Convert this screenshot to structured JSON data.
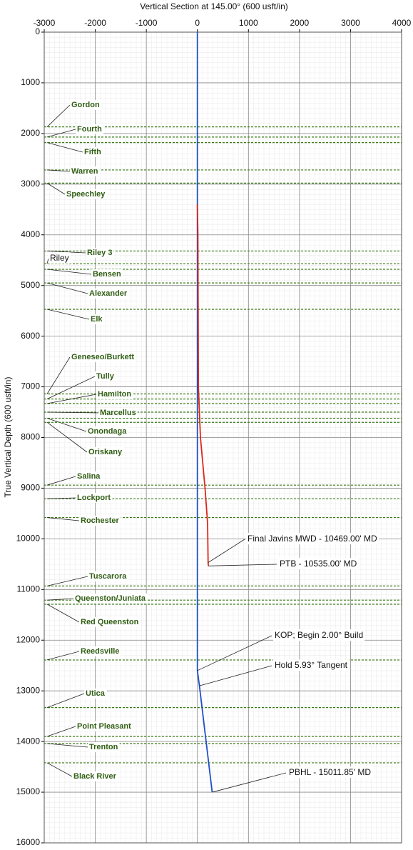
{
  "chart_data": {
    "type": "line",
    "x_label": "Vertical Section at 145.00° (600 usft/in)",
    "y_label": "True Vertical Depth (600 usft/in)",
    "xlim": [
      -3000,
      4000
    ],
    "xticks": [
      -3000,
      -2000,
      -1000,
      0,
      1000,
      2000,
      3000,
      4000
    ],
    "ylim": [
      0,
      16000
    ],
    "yticks": [
      0,
      1000,
      2000,
      3000,
      4000,
      5000,
      6000,
      7000,
      8000,
      9000,
      10000,
      11000,
      12000,
      13000,
      14000,
      15000,
      16000
    ],
    "y_inverted": true,
    "grid": true,
    "series": [
      {
        "color": "#1f4fc8",
        "x": [
          0,
          0,
          40,
          290
        ],
        "tvd": [
          0,
          12600,
          12900,
          15000
        ]
      },
      {
        "color": "#e0261a",
        "x": [
          0,
          10,
          20,
          60,
          150,
          200,
          210,
          215
        ],
        "tvd": [
          3400,
          4000,
          7000,
          8000,
          9000,
          9700,
          10469,
          10535
        ]
      }
    ],
    "formation_color": "#3a7a14",
    "formations": [
      {
        "name": "Gordon",
        "tvd": 1870
      },
      {
        "name": "Fourth",
        "tvd": 2070
      },
      {
        "name": "Fifth",
        "tvd": 2180
      },
      {
        "name": "Warren",
        "tvd": 2720
      },
      {
        "name": "Speechley",
        "tvd": 2980
      },
      {
        "name": "Riley 3",
        "tvd": 4320
      },
      {
        "name": "Riley",
        "tvd": 4570
      },
      {
        "name": "Bensen",
        "tvd": 4680
      },
      {
        "name": "Alexander",
        "tvd": 4950
      },
      {
        "name": "Elk",
        "tvd": 5470
      },
      {
        "name": "Geneseo/Burkett",
        "tvd": 7140
      },
      {
        "name": "Tully",
        "tvd": 7240
      },
      {
        "name": "Hamilton",
        "tvd": 7330
      },
      {
        "name": "Marcellus",
        "tvd": 7500
      },
      {
        "name": "Onondaga",
        "tvd": 7620
      },
      {
        "name": "Oriskany",
        "tvd": 7700
      },
      {
        "name": "Salina",
        "tvd": 8940
      },
      {
        "name": "Lockport",
        "tvd": 9210
      },
      {
        "name": "Rochester",
        "tvd": 9580
      },
      {
        "name": "Tuscarora",
        "tvd": 10930
      },
      {
        "name": "Queenston/Juniata",
        "tvd": 11210
      },
      {
        "name": "Red Queenston",
        "tvd": 11290
      },
      {
        "name": "Reedsville",
        "tvd": 12390
      },
      {
        "name": "Utica",
        "tvd": 13330
      },
      {
        "name": "Point Pleasant",
        "tvd": 13900
      },
      {
        "name": "Trenton",
        "tvd": 14040
      },
      {
        "name": "Black River",
        "tvd": 14420
      }
    ],
    "annotations": [
      {
        "text": "Final Javins MWD - 10469.00' MD",
        "x": 210,
        "tvd": 10469,
        "color": "#e0261a"
      },
      {
        "text": "PTB - 10535.00' MD",
        "x": 215,
        "tvd": 10535,
        "color": "#e0261a"
      },
      {
        "text": "KOP; Begin 2.00° Build",
        "x": 0,
        "tvd": 12600,
        "color": "#111111"
      },
      {
        "text": "Hold 5.93° Tangent",
        "x": 40,
        "tvd": 12900,
        "color": "#111111"
      },
      {
        "text": "PBHL - 15011.85' MD",
        "x": 290,
        "tvd": 15000,
        "color": "#111111"
      }
    ]
  }
}
